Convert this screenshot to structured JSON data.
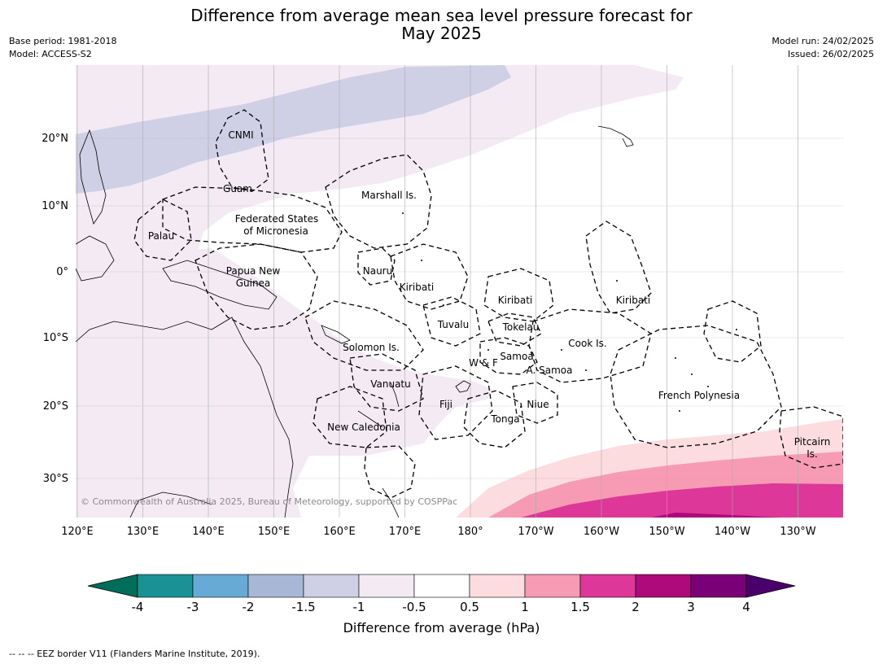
{
  "title_line1": "Difference from average mean sea level pressure forecast for",
  "title_line2": "May 2025",
  "meta_left": [
    "Base period: 1981-2018",
    "Model: ACCESS-S2"
  ],
  "meta_right": [
    "Model run: 24/02/2025",
    "Issued: 26/02/2025"
  ],
  "lon_labels": [
    "120°E",
    "130°E",
    "140°E",
    "150°E",
    "160°E",
    "170°E",
    "180°",
    "170°W",
    "160°W",
    "150°W",
    "140°W",
    "130°W"
  ],
  "lat_labels": [
    "20°N",
    "10°N",
    "0°",
    "10°S",
    "20°S",
    "30°S"
  ],
  "regions": [
    "CNMI",
    "Guam",
    "Marshall Is.",
    "Federated States",
    "of Micronesia",
    "Palau",
    "Papua New",
    "Guinea",
    "Nauru",
    "Kiribati",
    "Kiribati",
    "Kiribati",
    "Tuvalu",
    "Tokelau",
    "Solomon Is.",
    "W & F",
    "Samoa",
    "A. Samoa",
    "Cook Is.",
    "Vanuatu",
    "Fiji",
    "Niue",
    "Tonga",
    "New Caledonia",
    "French Polynesia",
    "Pitcairn",
    "Is."
  ],
  "credit": "© Commonwealth of Australia 2025, Bureau of Meteorology, supported by COSPPac",
  "colorbar": {
    "ticks": [
      "-4",
      "-3",
      "-2",
      "-1.5",
      "-1",
      "-0.5",
      "0.5",
      "1",
      "1.5",
      "2",
      "3",
      "4"
    ],
    "colors": [
      "#1a9295",
      "#67aad5",
      "#a7b7d5",
      "#cfd0e5",
      "#f3eaf4",
      "#ffffff",
      "#fcdcdf",
      "#f79bb5",
      "#dd3799",
      "#ae0a7c",
      "#7a0078"
    ],
    "under_color": "#006e5a",
    "over_color": "#4a006a",
    "label": "Difference from average (hPa)"
  },
  "footer": "--  --  -- EEZ border V11 (Flanders Marine Institute, 2019)."
}
